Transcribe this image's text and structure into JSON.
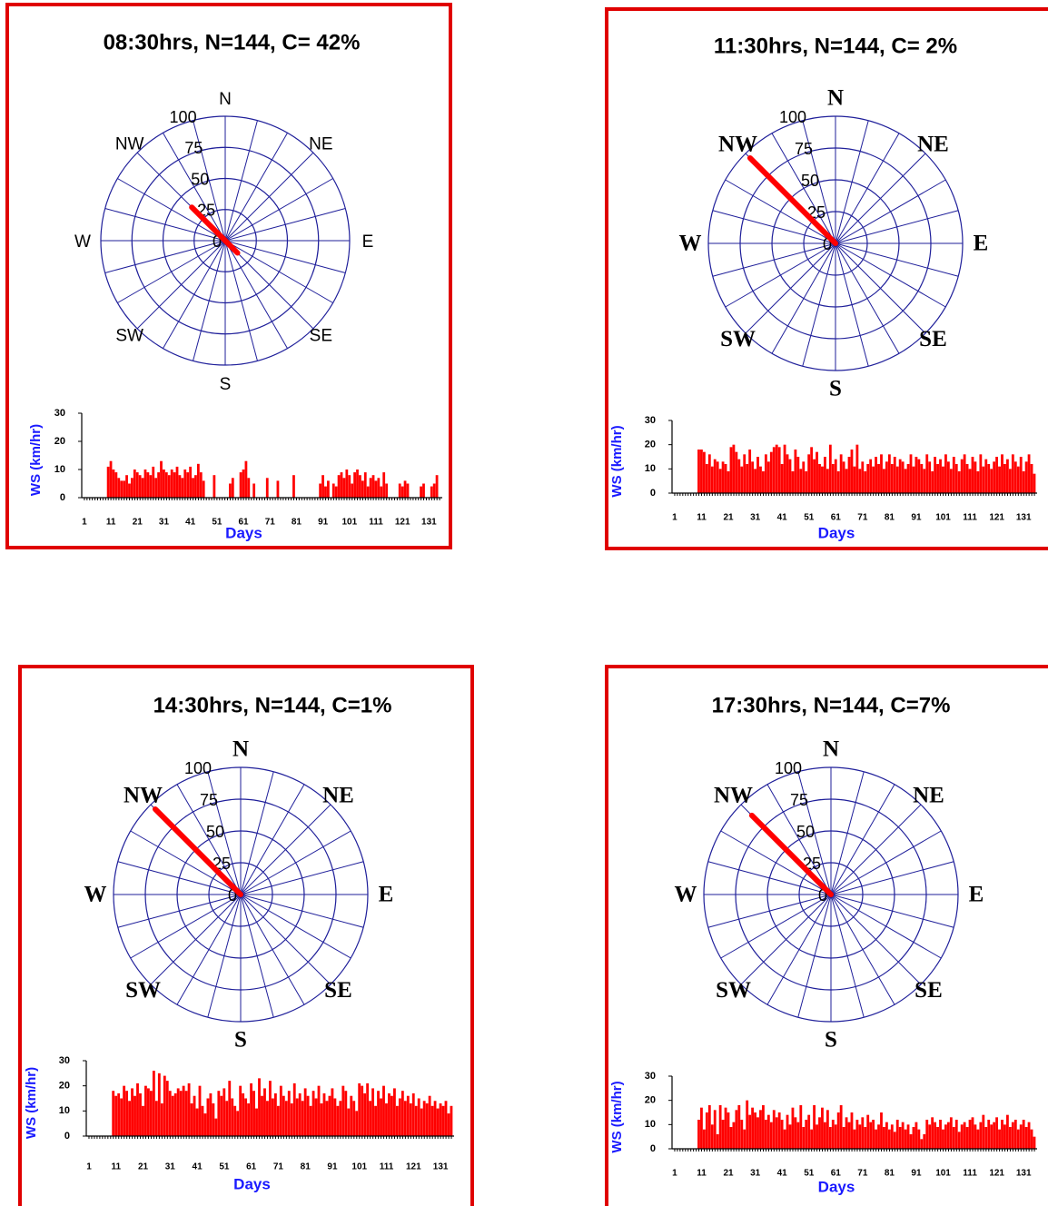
{
  "chart_data": [
    {
      "type": "rose",
      "title": "08:30hrs, N=144, C= 42%",
      "direction_labels": [
        "N",
        "NE",
        "E",
        "SE",
        "S",
        "SW",
        "W",
        "NW"
      ],
      "rlim": [
        0,
        100
      ],
      "rticks": [
        0,
        25,
        50,
        75,
        100
      ],
      "theta": [
        315,
        135
      ],
      "values": [
        38,
        14
      ],
      "color": "#ff0000"
    },
    {
      "type": "bar",
      "y_label": "WS (km/hr)",
      "x_label": "Days",
      "color": "#ff0000",
      "xlim": [
        0,
        136
      ],
      "xticks": [
        1,
        11,
        21,
        31,
        41,
        51,
        61,
        71,
        81,
        91,
        101,
        111,
        121,
        131
      ],
      "ylim": [
        0,
        30
      ],
      "yticks": [
        0,
        10,
        20,
        30
      ],
      "x": [
        1,
        2,
        3,
        4,
        5,
        6,
        7,
        8,
        9,
        10,
        11,
        12,
        13,
        14,
        15,
        16,
        17,
        18,
        19,
        20,
        21,
        22,
        23,
        24,
        25,
        26,
        27,
        28,
        29,
        30,
        31,
        32,
        33,
        34,
        35,
        36,
        37,
        38,
        39,
        40,
        41,
        42,
        43,
        44,
        45,
        46,
        47,
        48,
        49,
        50,
        51,
        52,
        53,
        54,
        55,
        56,
        57,
        58,
        59,
        60,
        61,
        62,
        63,
        64,
        65,
        66,
        67,
        68,
        69,
        70,
        71,
        72,
        73,
        74,
        75,
        76,
        77,
        78,
        79,
        80,
        81,
        82,
        83,
        84,
        85,
        86,
        87,
        88,
        89,
        90,
        91,
        92,
        93,
        94,
        95,
        96,
        97,
        98,
        99,
        100,
        101,
        102,
        103,
        104,
        105,
        106,
        107,
        108,
        109,
        110,
        111,
        112,
        113,
        114,
        115,
        116,
        117,
        118,
        119,
        120,
        121,
        122,
        123,
        124,
        125,
        126,
        127,
        128,
        129,
        130,
        131,
        132,
        133,
        134,
        135
      ],
      "values": [
        0,
        0,
        0,
        0,
        0,
        0,
        0,
        0,
        0,
        11,
        13,
        10,
        9,
        7,
        6,
        6,
        8,
        5,
        7,
        10,
        9,
        8,
        7,
        10,
        9,
        8,
        11,
        7,
        9,
        13,
        10,
        9,
        8,
        10,
        9,
        11,
        8,
        7,
        10,
        9,
        11,
        7,
        8,
        12,
        9,
        6,
        0,
        0,
        0,
        8,
        0,
        0,
        0,
        0,
        0,
        5,
        7,
        0,
        0,
        9,
        10,
        13,
        7,
        0,
        5,
        0,
        0,
        0,
        0,
        7,
        0,
        0,
        0,
        6,
        0,
        0,
        0,
        0,
        0,
        8,
        0,
        0,
        0,
        0,
        0,
        0,
        0,
        0,
        0,
        5,
        8,
        4,
        6,
        0,
        5,
        4,
        8,
        9,
        7,
        10,
        8,
        5,
        9,
        10,
        8,
        6,
        9,
        4,
        7,
        8,
        6,
        7,
        4,
        9,
        5,
        0,
        0,
        0,
        0,
        5,
        4,
        6,
        5,
        0,
        0,
        0,
        0,
        4,
        5,
        0,
        0,
        4,
        5,
        8,
        0
      ]
    },
    {
      "type": "rose",
      "title": "11:30hrs, N=144, C= 2%",
      "direction_labels": [
        "N",
        "NE",
        "E",
        "SE",
        "S",
        "SW",
        "W",
        "NW"
      ],
      "rlim": [
        0,
        100
      ],
      "rticks": [
        0,
        25,
        50,
        75,
        100
      ],
      "theta": [
        315
      ],
      "values": [
        95
      ],
      "color": "#ff0000"
    },
    {
      "type": "bar",
      "y_label": "WS (km/hr)",
      "x_label": "Days",
      "color": "#ff0000",
      "xlim": [
        0,
        136
      ],
      "xticks": [
        1,
        11,
        21,
        31,
        41,
        51,
        61,
        71,
        81,
        91,
        101,
        111,
        121,
        131
      ],
      "ylim": [
        0,
        30
      ],
      "yticks": [
        0,
        10,
        20,
        30
      ],
      "x": [
        1,
        2,
        3,
        4,
        5,
        6,
        7,
        8,
        9,
        10,
        11,
        12,
        13,
        14,
        15,
        16,
        17,
        18,
        19,
        20,
        21,
        22,
        23,
        24,
        25,
        26,
        27,
        28,
        29,
        30,
        31,
        32,
        33,
        34,
        35,
        36,
        37,
        38,
        39,
        40,
        41,
        42,
        43,
        44,
        45,
        46,
        47,
        48,
        49,
        50,
        51,
        52,
        53,
        54,
        55,
        56,
        57,
        58,
        59,
        60,
        61,
        62,
        63,
        64,
        65,
        66,
        67,
        68,
        69,
        70,
        71,
        72,
        73,
        74,
        75,
        76,
        77,
        78,
        79,
        80,
        81,
        82,
        83,
        84,
        85,
        86,
        87,
        88,
        89,
        90,
        91,
        92,
        93,
        94,
        95,
        96,
        97,
        98,
        99,
        100,
        101,
        102,
        103,
        104,
        105,
        106,
        107,
        108,
        109,
        110,
        111,
        112,
        113,
        114,
        115,
        116,
        117,
        118,
        119,
        120,
        121,
        122,
        123,
        124,
        125,
        126,
        127,
        128,
        129,
        130,
        131,
        132,
        133,
        134,
        135
      ],
      "values": [
        0,
        0,
        0,
        0,
        0,
        0,
        0,
        0,
        0,
        18,
        18,
        17,
        12,
        16,
        11,
        14,
        13,
        10,
        13,
        12,
        9,
        19,
        20,
        17,
        14,
        11,
        16,
        12,
        18,
        13,
        10,
        15,
        11,
        9,
        16,
        13,
        17,
        19,
        20,
        19,
        12,
        20,
        16,
        14,
        9,
        18,
        15,
        10,
        13,
        9,
        16,
        19,
        14,
        17,
        12,
        11,
        15,
        10,
        20,
        12,
        14,
        9,
        16,
        13,
        10,
        15,
        18,
        11,
        20,
        10,
        13,
        9,
        12,
        14,
        11,
        15,
        12,
        16,
        10,
        13,
        16,
        12,
        15,
        11,
        14,
        13,
        10,
        12,
        16,
        11,
        15,
        14,
        12,
        10,
        16,
        13,
        9,
        15,
        12,
        14,
        11,
        16,
        13,
        10,
        15,
        12,
        9,
        14,
        16,
        12,
        10,
        15,
        13,
        9,
        16,
        11,
        14,
        12,
        10,
        13,
        15,
        11,
        16,
        12,
        14,
        10,
        16,
        13,
        11,
        15,
        9,
        13,
        16,
        12,
        8
      ]
    },
    {
      "type": "rose",
      "title": "14:30hrs, N=144, C=1%",
      "direction_labels": [
        "N",
        "NE",
        "E",
        "SE",
        "S",
        "SW",
        "W",
        "NW"
      ],
      "rlim": [
        0,
        100
      ],
      "rticks": [
        0,
        25,
        50,
        75,
        100
      ],
      "theta": [
        315
      ],
      "values": [
        95
      ],
      "color": "#ff0000"
    },
    {
      "type": "bar",
      "y_label": "WS (km/hr)",
      "x_label": "Days",
      "color": "#ff0000",
      "xlim": [
        0,
        136
      ],
      "xticks": [
        1,
        11,
        21,
        31,
        41,
        51,
        61,
        71,
        81,
        91,
        101,
        111,
        121,
        131
      ],
      "ylim": [
        0,
        30
      ],
      "yticks": [
        0,
        10,
        20,
        30
      ],
      "x": [
        1,
        2,
        3,
        4,
        5,
        6,
        7,
        8,
        9,
        10,
        11,
        12,
        13,
        14,
        15,
        16,
        17,
        18,
        19,
        20,
        21,
        22,
        23,
        24,
        25,
        26,
        27,
        28,
        29,
        30,
        31,
        32,
        33,
        34,
        35,
        36,
        37,
        38,
        39,
        40,
        41,
        42,
        43,
        44,
        45,
        46,
        47,
        48,
        49,
        50,
        51,
        52,
        53,
        54,
        55,
        56,
        57,
        58,
        59,
        60,
        61,
        62,
        63,
        64,
        65,
        66,
        67,
        68,
        69,
        70,
        71,
        72,
        73,
        74,
        75,
        76,
        77,
        78,
        79,
        80,
        81,
        82,
        83,
        84,
        85,
        86,
        87,
        88,
        89,
        90,
        91,
        92,
        93,
        94,
        95,
        96,
        97,
        98,
        99,
        100,
        101,
        102,
        103,
        104,
        105,
        106,
        107,
        108,
        109,
        110,
        111,
        112,
        113,
        114,
        115,
        116,
        117,
        118,
        119,
        120,
        121,
        122,
        123,
        124,
        125,
        126,
        127,
        128,
        129,
        130,
        131,
        132,
        133,
        134,
        135
      ],
      "values": [
        0,
        0,
        0,
        0,
        0,
        0,
        0,
        0,
        0,
        18,
        16,
        17,
        15,
        20,
        18,
        14,
        19,
        16,
        21,
        17,
        12,
        20,
        19,
        18,
        26,
        14,
        25,
        13,
        24,
        22,
        18,
        16,
        17,
        19,
        18,
        20,
        18,
        21,
        13,
        16,
        11,
        20,
        12,
        9,
        15,
        17,
        13,
        7,
        18,
        16,
        19,
        14,
        22,
        15,
        12,
        10,
        20,
        17,
        15,
        13,
        21,
        18,
        11,
        23,
        16,
        19,
        14,
        22,
        15,
        17,
        12,
        20,
        16,
        14,
        18,
        13,
        21,
        15,
        17,
        14,
        19,
        16,
        12,
        18,
        15,
        20,
        13,
        17,
        14,
        16,
        19,
        15,
        12,
        14,
        20,
        18,
        11,
        16,
        14,
        10,
        21,
        20,
        17,
        21,
        14,
        19,
        12,
        18,
        15,
        20,
        13,
        17,
        16,
        19,
        12,
        15,
        18,
        14,
        16,
        13,
        17,
        12,
        15,
        11,
        14,
        13,
        16,
        12,
        14,
        11,
        13,
        12,
        14,
        9,
        12
      ]
    },
    {
      "type": "rose",
      "title": "17:30hrs, N=144, C=7%",
      "direction_labels": [
        "N",
        "NE",
        "E",
        "SE",
        "S",
        "SW",
        "W",
        "NW"
      ],
      "rlim": [
        0,
        100
      ],
      "rticks": [
        0,
        25,
        50,
        75,
        100
      ],
      "theta": [
        315
      ],
      "values": [
        88
      ],
      "color": "#ff0000"
    },
    {
      "type": "bar",
      "y_label": "WS (km/hr)",
      "x_label": "Days",
      "color": "#ff0000",
      "xlim": [
        0,
        136
      ],
      "xticks": [
        1,
        11,
        21,
        31,
        41,
        51,
        61,
        71,
        81,
        91,
        101,
        111,
        121,
        131
      ],
      "ylim": [
        0,
        30
      ],
      "yticks": [
        0,
        10,
        20,
        30
      ],
      "x": [
        1,
        2,
        3,
        4,
        5,
        6,
        7,
        8,
        9,
        10,
        11,
        12,
        13,
        14,
        15,
        16,
        17,
        18,
        19,
        20,
        21,
        22,
        23,
        24,
        25,
        26,
        27,
        28,
        29,
        30,
        31,
        32,
        33,
        34,
        35,
        36,
        37,
        38,
        39,
        40,
        41,
        42,
        43,
        44,
        45,
        46,
        47,
        48,
        49,
        50,
        51,
        52,
        53,
        54,
        55,
        56,
        57,
        58,
        59,
        60,
        61,
        62,
        63,
        64,
        65,
        66,
        67,
        68,
        69,
        70,
        71,
        72,
        73,
        74,
        75,
        76,
        77,
        78,
        79,
        80,
        81,
        82,
        83,
        84,
        85,
        86,
        87,
        88,
        89,
        90,
        91,
        92,
        93,
        94,
        95,
        96,
        97,
        98,
        99,
        100,
        101,
        102,
        103,
        104,
        105,
        106,
        107,
        108,
        109,
        110,
        111,
        112,
        113,
        114,
        115,
        116,
        117,
        118,
        119,
        120,
        121,
        122,
        123,
        124,
        125,
        126,
        127,
        128,
        129,
        130,
        131,
        132,
        133,
        134,
        135
      ],
      "values": [
        0,
        0,
        0,
        0,
        0,
        0,
        0,
        0,
        0,
        12,
        17,
        8,
        15,
        18,
        10,
        16,
        6,
        18,
        12,
        17,
        15,
        9,
        11,
        16,
        18,
        12,
        8,
        20,
        14,
        17,
        15,
        13,
        16,
        18,
        12,
        14,
        11,
        16,
        13,
        15,
        12,
        8,
        14,
        10,
        17,
        13,
        11,
        18,
        9,
        12,
        14,
        8,
        18,
        10,
        13,
        17,
        11,
        16,
        9,
        12,
        10,
        15,
        18,
        9,
        13,
        11,
        15,
        8,
        12,
        10,
        13,
        9,
        14,
        11,
        12,
        8,
        10,
        15,
        9,
        11,
        8,
        10,
        7,
        12,
        9,
        11,
        8,
        10,
        6,
        9,
        11,
        8,
        4,
        6,
        12,
        10,
        13,
        11,
        9,
        12,
        8,
        10,
        11,
        13,
        9,
        12,
        7,
        10,
        11,
        9,
        12,
        13,
        10,
        8,
        11,
        14,
        9,
        12,
        10,
        11,
        13,
        8,
        12,
        10,
        14,
        9,
        11,
        12,
        8,
        10,
        12,
        9,
        11,
        8,
        5
      ]
    }
  ]
}
